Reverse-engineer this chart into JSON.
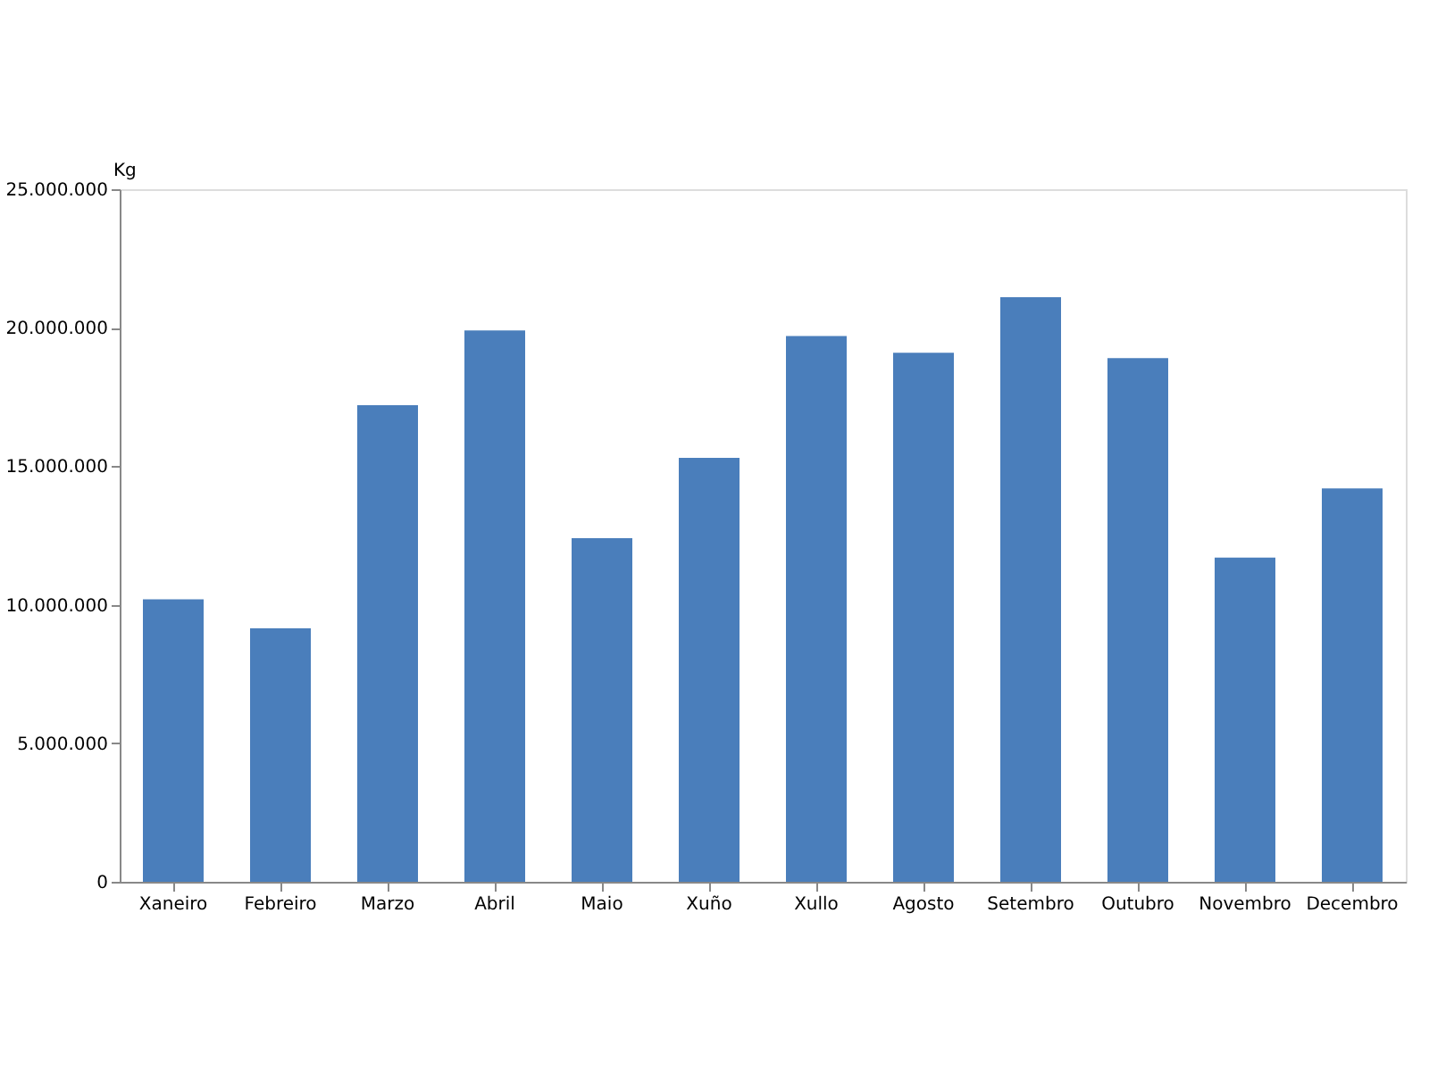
{
  "chart_data": {
    "type": "bar",
    "ylabel": "Kg",
    "categories": [
      "Xaneiro",
      "Febreiro",
      "Marzo",
      "Abril",
      "Maio",
      "Xuño",
      "Xullo",
      "Agosto",
      "Setembro",
      "Outubro",
      "Novembro",
      "Decembro"
    ],
    "series": [
      {
        "color": "#4a7ebb",
        "values": [
          10200000,
          9150000,
          17200000,
          19900000,
          12400000,
          15300000,
          19700000,
          19100000,
          21100000,
          18900000,
          11700000,
          14200000
        ]
      }
    ],
    "ylim": [
      0,
      25000000
    ],
    "yticks": [
      {
        "value": 0,
        "label": "0"
      },
      {
        "value": 5000000,
        "label": "5.000.000"
      },
      {
        "value": 10000000,
        "label": "10.000.000"
      },
      {
        "value": 15000000,
        "label": "15.000.000"
      },
      {
        "value": 20000000,
        "label": "20.000.000"
      },
      {
        "value": 25000000,
        "label": "25.000.000"
      }
    ],
    "grid": false,
    "legend": false
  }
}
